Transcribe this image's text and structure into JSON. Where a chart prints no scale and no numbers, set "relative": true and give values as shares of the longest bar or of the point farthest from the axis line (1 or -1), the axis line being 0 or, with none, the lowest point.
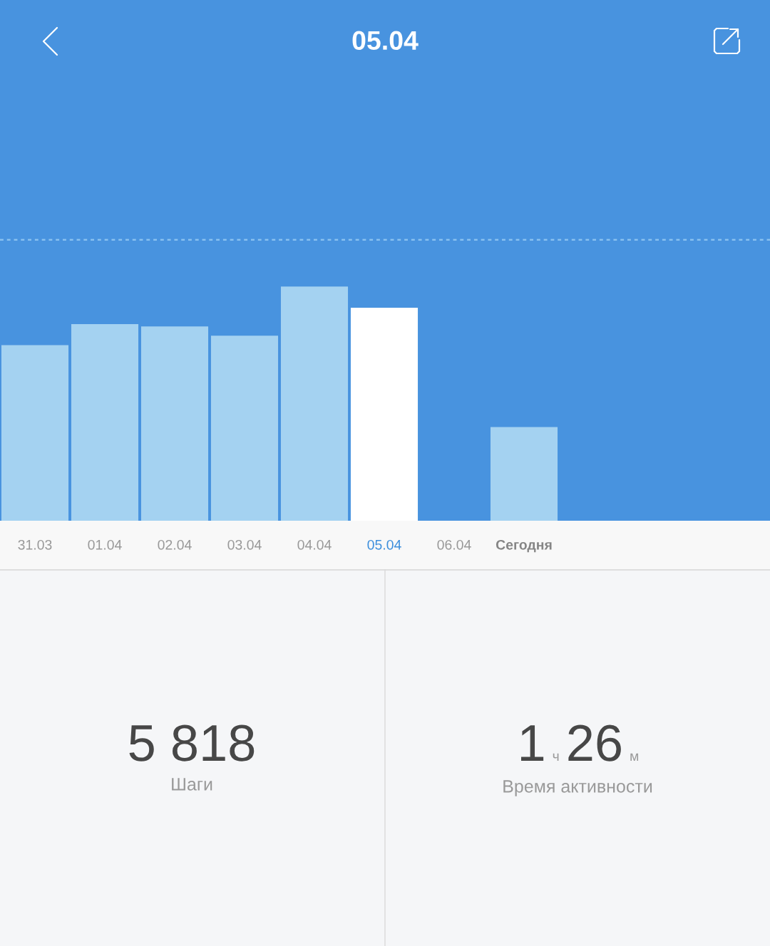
{
  "chart_data": [
    {
      "type": "bar",
      "title": "05.04",
      "categories": [
        "31.03",
        "01.04",
        "02.04",
        "03.04",
        "04.04",
        "05.04",
        "06.04",
        "Сегодня"
      ],
      "values": [
        0.75,
        0.84,
        0.83,
        0.79,
        1,
        0.91,
        null,
        0.4
      ],
      "colors": [
        "#a4d2f1",
        "#a4d2f1",
        "#a4d2f1",
        "#a4d2f1",
        "#a4d2f1",
        "#ffffff",
        "#a4d2f1",
        "#a4d2f1"
      ],
      "relative": true,
      "ref_lines": [
        {
          "axis": "y",
          "value": 1.2,
          "color": "#8fc5f2",
          "line_style": "dashed"
        }
      ]
    },
    {
      "type": "other",
      "annotations": [
        "5 818",
        "Шаги",
        "1",
        "ч",
        "26",
        "м",
        "Время активности"
      ]
    }
  ]
}
